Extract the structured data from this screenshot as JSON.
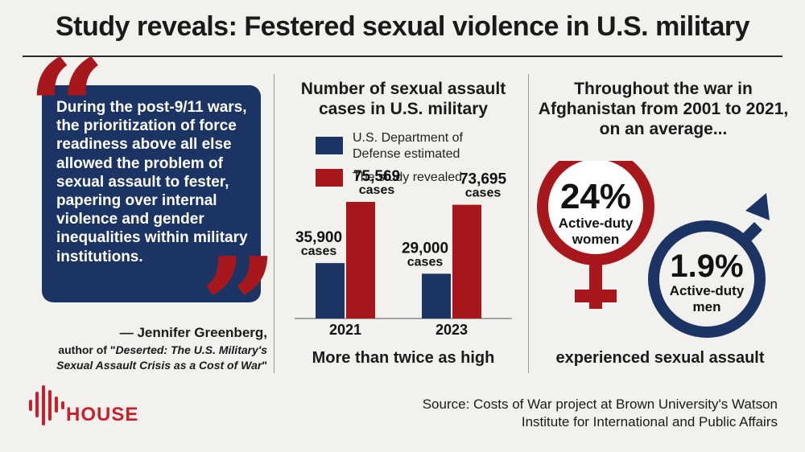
{
  "title": "Study reveals: Festered sexual violence in U.S. military",
  "quote": {
    "text": "During the post-9/11 wars, the prioritization of force readiness above all else allowed the problem of sexual assault to fester, papering over internal violence and gender inequalities within military institutions.",
    "author": "— Jennifer Greenberg,",
    "role_prefix": "author of \"",
    "book": "Deserted: The U.S. Military's Sexual Assault Crisis as a Cost of War",
    "role_suffix": "\""
  },
  "logo": {
    "text": "HOUSE"
  },
  "chart_data": {
    "type": "bar",
    "title": "Number of sexual assault cases in U.S. military",
    "categories": [
      "2021",
      "2023"
    ],
    "series": [
      {
        "name": "U.S. Department of Defense estimated",
        "values": [
          35900,
          29000
        ],
        "labels": [
          "35,900",
          "29,000"
        ],
        "color": "#1c3463"
      },
      {
        "name": "The study revealed",
        "values": [
          75569,
          73695
        ],
        "labels": [
          "75,569",
          "73,695"
        ],
        "color": "#a8171c"
      }
    ],
    "value_unit_label": "cases",
    "footer": "More than twice as high"
  },
  "gender": {
    "title": "Throughout the war in Afghanistan from 2001 to 2021, on an average...",
    "women": {
      "pct": "24%",
      "label": "Active-duty women",
      "color": "#a8171c"
    },
    "men": {
      "pct": "1.9%",
      "label": "Active-duty men",
      "color": "#1c3463"
    },
    "footer": "experienced sexual assault"
  },
  "source": "Source: Costs of War project at Brown University's Watson Institute for International and Public Affairs"
}
